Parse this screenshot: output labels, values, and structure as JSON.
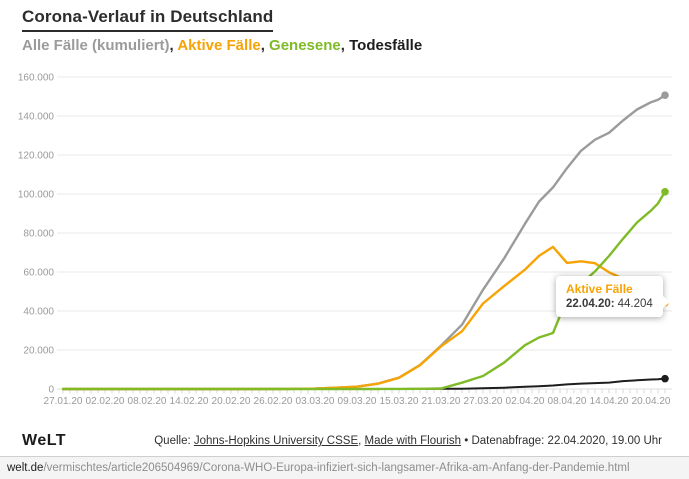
{
  "header": {
    "title": "Corona-Verlauf in Deutschland",
    "legend_separator": ", ",
    "legend": [
      {
        "label": "Alle Fälle (kumuliert)",
        "color": "#9b9b9b"
      },
      {
        "label": "Aktive Fälle",
        "color": "#f7a305"
      },
      {
        "label": "Genesene",
        "color": "#7fbb27"
      },
      {
        "label": "Todesfälle",
        "color": "#1d1d1d"
      }
    ]
  },
  "chart_data": {
    "type": "line",
    "title": "Corona-Verlauf in Deutschland",
    "grid": "horizontal",
    "legend_position": "subtitle",
    "ylim": [
      0,
      160000
    ],
    "y_tick_step": 20000,
    "y_tick_labels": [
      "0",
      "20.000",
      "40.000",
      "60.000",
      "80.000",
      "100.000",
      "120.000",
      "140.000",
      "160.000"
    ],
    "x_tick_labels": [
      "27.01.20",
      "02.02.20",
      "08.02.20",
      "14.02.20",
      "20.02.20",
      "26.02.20",
      "03.03.20",
      "09.03.20",
      "15.03.20",
      "21.03.20",
      "27.03.20",
      "02.04.20",
      "08.04.20",
      "14.04.20",
      "20.04.20"
    ],
    "x": [
      "27.01.20",
      "03.02.20",
      "10.02.20",
      "17.02.20",
      "24.02.20",
      "28.02.20",
      "03.03.20",
      "06.03.20",
      "09.03.20",
      "12.03.20",
      "15.03.20",
      "18.03.20",
      "21.03.20",
      "24.03.20",
      "27.03.20",
      "30.03.20",
      "02.04.20",
      "04.04.20",
      "06.04.20",
      "08.04.20",
      "10.04.20",
      "12.04.20",
      "14.04.20",
      "16.04.20",
      "18.04.20",
      "20.04.20",
      "21.04.20",
      "22.04.20"
    ],
    "series": [
      {
        "name": "Alle Fälle (kumuliert)",
        "color": "#9b9b9b",
        "values": [
          1,
          12,
          14,
          16,
          16,
          48,
          196,
          670,
          1176,
          2745,
          5795,
          12327,
          22213,
          32986,
          50871,
          66885,
          84794,
          96092,
          103374,
          113296,
          122171,
          127854,
          131359,
          137698,
          143342,
          147065,
          148291,
          150648
        ]
      },
      {
        "name": "Aktive Fälle",
        "color": "#f7a305",
        "values": [
          1,
          12,
          13,
          13,
          4,
          32,
          180,
          653,
          1156,
          2714,
          5738,
          12194,
          21896,
          29586,
          43871,
          52740,
          61247,
          68248,
          72864,
          64647,
          65491,
          64532,
          59865,
          56646,
          53483,
          50703,
          48058,
          44204
        ]
      },
      {
        "name": "Genesene",
        "color": "#7fbb27",
        "values": [
          0,
          0,
          1,
          3,
          12,
          16,
          16,
          17,
          18,
          25,
          46,
          105,
          233,
          3243,
          6658,
          13500,
          22440,
          26400,
          28700,
          46300,
          53913,
          60300,
          68200,
          77000,
          85400,
          91500,
          95200,
          101129
        ]
      },
      {
        "name": "Todesfälle",
        "color": "#1d1d1d",
        "values": [
          0,
          0,
          0,
          0,
          0,
          0,
          0,
          0,
          2,
          6,
          11,
          28,
          84,
          157,
          342,
          645,
          1107,
          1444,
          1810,
          2349,
          2767,
          3022,
          3294,
          4052,
          4459,
          4862,
          5033,
          5315
        ]
      }
    ]
  },
  "tooltip": {
    "series": "Aktive Fälle",
    "color": "#f7a305",
    "date_label": "22.04.20:",
    "value": "44.204"
  },
  "footer": {
    "logo": "WeLT",
    "source_prefix": "Quelle: ",
    "source_link1": "Johns-Hopkins University CSSE",
    "source_sep": ", ",
    "source_link2": "Made with Flourish",
    "source_suffix": " • Datenabfrage: 22.04.2020, 19.00 Uhr"
  },
  "url_bar": {
    "domain": "welt.de",
    "path": "/vermischtes/article206504969/Corona-WHO-Europa-infiziert-sich-langsamer-Afrika-am-Anfang-der-Pandemie.html"
  }
}
